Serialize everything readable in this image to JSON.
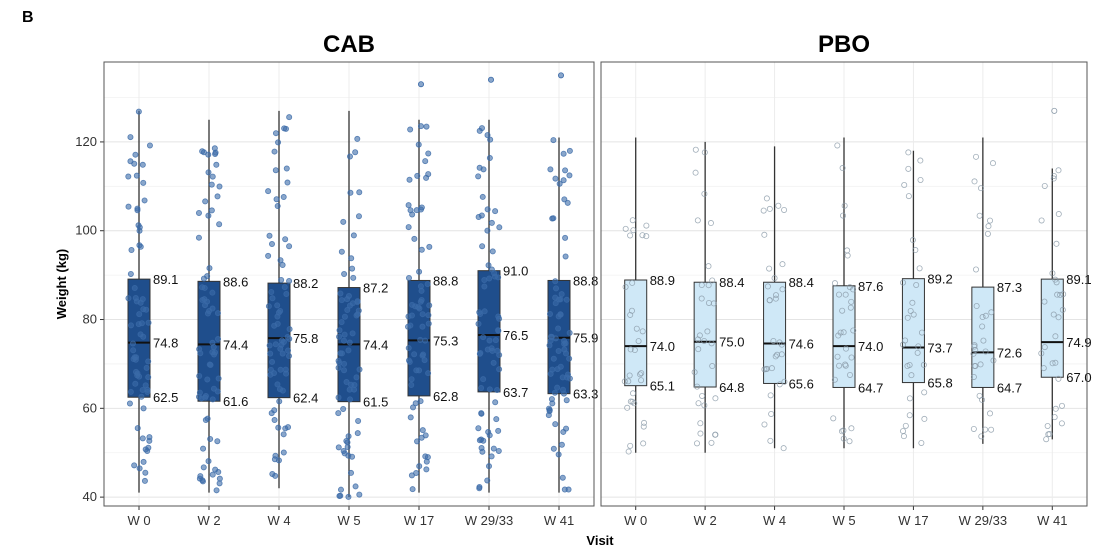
{
  "panel_letter": "B",
  "chart_data": {
    "type": "box",
    "xlabel": "Visit",
    "ylabel": "Weight (kg)",
    "ylim": [
      38,
      138
    ],
    "yticks": [
      40,
      60,
      80,
      100,
      120
    ],
    "grid": true,
    "categories": [
      "W 0",
      "W 2",
      "W 4",
      "W 5",
      "W 17",
      "W 29/33",
      "W 41"
    ],
    "panels": [
      {
        "title": "CAB",
        "box_color": "#1f4e8c",
        "point_color": "#3b6aa8",
        "points_filled": true,
        "boxes": [
          {
            "visit": "W 0",
            "q1": 62.5,
            "median": 74.8,
            "q3": 89.1,
            "whisker_low": 41,
            "whisker_high": 127
          },
          {
            "visit": "W 2",
            "q1": 61.6,
            "median": 74.4,
            "q3": 88.6,
            "whisker_low": 41,
            "whisker_high": 125
          },
          {
            "visit": "W 4",
            "q1": 62.4,
            "median": 75.8,
            "q3": 88.2,
            "whisker_low": 42,
            "whisker_high": 127
          },
          {
            "visit": "W 5",
            "q1": 61.5,
            "median": 74.4,
            "q3": 87.2,
            "whisker_low": 40,
            "whisker_high": 127
          },
          {
            "visit": "W 17",
            "q1": 62.8,
            "median": 75.3,
            "q3": 88.8,
            "whisker_low": 41,
            "whisker_high": 125
          },
          {
            "visit": "W 29/33",
            "q1": 63.7,
            "median": 76.5,
            "q3": 91.0,
            "whisker_low": 41,
            "whisker_high": 125
          },
          {
            "visit": "W 41",
            "q1": 63.3,
            "median": 75.9,
            "q3": 88.8,
            "whisker_low": 41,
            "whisker_high": 121
          }
        ],
        "outliers": [
          {
            "visit": "W 17",
            "value": 133
          },
          {
            "visit": "W 29/33",
            "value": 134
          },
          {
            "visit": "W 41",
            "value": 135
          }
        ]
      },
      {
        "title": "PBO",
        "box_color": "#cfe8f7",
        "point_color": "#8a9aa8",
        "points_filled": false,
        "boxes": [
          {
            "visit": "W 0",
            "q1": 65.1,
            "median": 74.0,
            "q3": 88.9,
            "whisker_low": 50,
            "whisker_high": 121
          },
          {
            "visit": "W 2",
            "q1": 64.8,
            "median": 75.0,
            "q3": 88.4,
            "whisker_low": 50,
            "whisker_high": 120
          },
          {
            "visit": "W 4",
            "q1": 65.6,
            "median": 74.6,
            "q3": 88.4,
            "whisker_low": 51,
            "whisker_high": 119
          },
          {
            "visit": "W 5",
            "q1": 64.7,
            "median": 74.0,
            "q3": 87.6,
            "whisker_low": 51,
            "whisker_high": 121
          },
          {
            "visit": "W 17",
            "q1": 65.8,
            "median": 73.7,
            "q3": 89.2,
            "whisker_low": 51,
            "whisker_high": 118
          },
          {
            "visit": "W 29/33",
            "q1": 64.7,
            "median": 72.6,
            "q3": 87.3,
            "whisker_low": 52,
            "whisker_high": 121
          },
          {
            "visit": "W 41",
            "q1": 67.0,
            "median": 74.9,
            "q3": 89.1,
            "whisker_low": 53,
            "whisker_high": 114
          }
        ],
        "outliers": [
          {
            "visit": "W 41",
            "value": 127
          }
        ]
      }
    ]
  }
}
